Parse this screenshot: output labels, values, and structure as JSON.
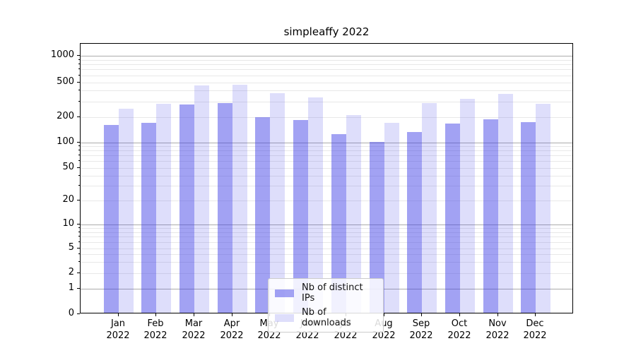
{
  "title": "simpleaffy 2022",
  "legend": {
    "items": [
      {
        "label": "Nb of distinct IPs",
        "series": "ips"
      },
      {
        "label": "Nb of downloads",
        "series": "downloads"
      }
    ],
    "position": "lower center"
  },
  "colors": {
    "bar_base": "#3c3ce6",
    "ips_alpha": 0.48,
    "downloads_alpha": 0.17,
    "grid_major": "#ababab",
    "grid_minor": "#e8e8e8",
    "axis": "#000000",
    "legend_border": "#cccccc"
  },
  "chart_data": {
    "type": "bar",
    "title": "simpleaffy 2022",
    "categories": [
      "Jan 2022",
      "Feb 2022",
      "Mar 2022",
      "Apr 2022",
      "May 2022",
      "Jun 2022",
      "Jul 2022",
      "Aug 2022",
      "Sep 2022",
      "Oct 2022",
      "Nov 2022",
      "Dec 2022"
    ],
    "series": [
      {
        "name": "Nb of distinct IPs",
        "values": [
          155,
          165,
          265,
          280,
          190,
          176,
          122,
          98,
          128,
          160,
          179,
          168
        ]
      },
      {
        "name": "Nb of downloads",
        "values": [
          240,
          270,
          445,
          455,
          360,
          325,
          200,
          164,
          275,
          310,
          355,
          272
        ]
      }
    ],
    "yscale": "symlog",
    "yticks": [
      0,
      1,
      2,
      5,
      10,
      20,
      50,
      100,
      200,
      500,
      1000
    ],
    "minor_gridlines": [
      3,
      4,
      6,
      7,
      8,
      9,
      30,
      40,
      60,
      70,
      80,
      90,
      300,
      400,
      600,
      700,
      800,
      900
    ],
    "ylim": [
      0,
      1370
    ],
    "xlabel": "",
    "ylabel": "",
    "grid": "both",
    "legend_position": "lower center"
  }
}
